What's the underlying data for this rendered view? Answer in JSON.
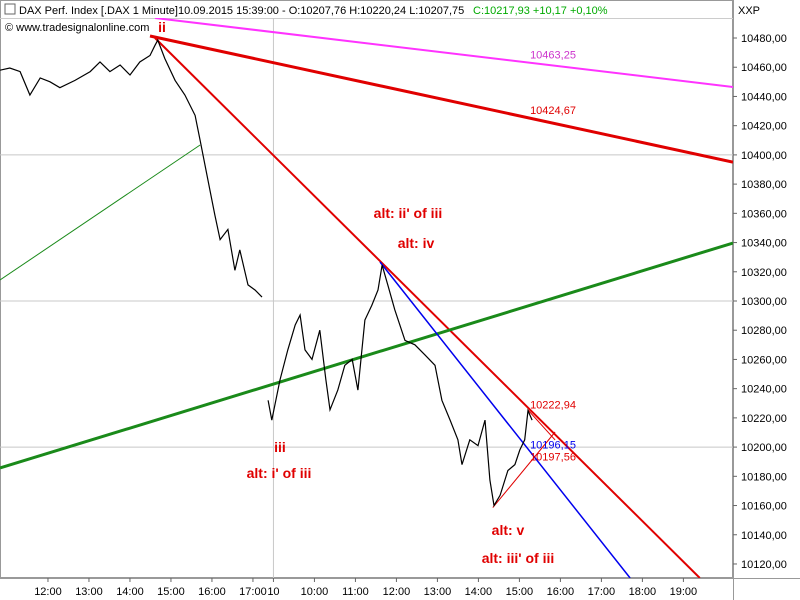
{
  "chart_data": {
    "type": "line",
    "title": "DAX Perf. Index [.DAX  1 Minute]",
    "subtitle": "10.09.2015 15:39:00 - O:10207,76 H:10220,24 L:10207,75",
    "change": "C:10217,93 +10,17 +0,10%",
    "copyright": "© www.tradesignalonline.com",
    "y_axis_label": "XXP",
    "color": "#000000",
    "x": [
      10.83,
      11.07,
      11.32,
      11.56,
      11.81,
      12.05,
      12.29,
      12.66,
      13.03,
      13.27,
      13.51,
      13.76,
      14.0,
      14.24,
      14.49,
      14.61,
      14.68,
      14.85,
      15.1,
      15.34,
      15.59,
      15.71,
      15.83,
      15.95,
      16.07,
      16.2,
      16.39,
      16.56,
      16.68,
      16.88,
      17.05,
      17.22,
      17.3,
      17.37,
      17.46,
      17.66,
      17.85,
      18.03,
      18.15,
      18.27,
      18.44,
      18.63,
      18.78,
      18.88,
      19.07,
      19.24,
      19.42,
      19.56,
      19.73,
      19.9,
      20.05,
      20.15,
      20.29,
      20.46,
      20.71,
      20.95,
      21.2,
      21.44,
      21.61,
      21.81,
      22.0,
      22.1,
      22.29,
      22.49,
      22.66,
      22.78,
      22.88,
      23.03,
      23.22,
      23.39,
      23.51,
      23.63,
      23.71,
      23.81
    ],
    "values": [
      10458,
      10459.5,
      10457,
      10441,
      10452.6,
      10450,
      10446,
      10451,
      10457,
      10463.6,
      10457,
      10461.5,
      10454.7,
      10463.6,
      10468,
      10475,
      10478.6,
      10466,
      10451,
      10441,
      10427,
      10410,
      10393,
      10376,
      10359,
      10342,
      10349,
      10321,
      10335,
      10311,
      10307.5,
      10302.7,
      null,
      10232,
      10218.5,
      10246,
      10266.5,
      10283.6,
      10290.4,
      10266.5,
      10260,
      10280,
      10246,
      10225.5,
      10239,
      10256,
      10260,
      10239,
      10287,
      10297,
      10307.5,
      10324.6,
      10311,
      10294,
      10273,
      10270,
      10263,
      10256,
      10232,
      10218.5,
      10205,
      10188,
      10205,
      10201,
      10218.5,
      10177.5,
      10160,
      10167,
      10184,
      10188,
      10198,
      10205,
      10225,
      10218.5
    ],
    "xlim": [
      10.83,
      28.71
    ],
    "ylim": [
      10110.4,
      10493.7
    ],
    "xticks": [
      {
        "value": 12,
        "label": "12:00"
      },
      {
        "value": 13,
        "label": "13:00"
      },
      {
        "value": 14,
        "label": "14:00"
      },
      {
        "value": 15,
        "label": "15:00"
      },
      {
        "value": 16,
        "label": "16:00"
      },
      {
        "value": 17,
        "label": "17:00"
      },
      {
        "value": 17.5,
        "label": "10"
      },
      {
        "value": 18.5,
        "label": "10:00"
      },
      {
        "value": 19.5,
        "label": "11:00"
      },
      {
        "value": 20.5,
        "label": "12:00"
      },
      {
        "value": 21.5,
        "label": "13:00"
      },
      {
        "value": 22.5,
        "label": "14:00"
      },
      {
        "value": 23.5,
        "label": "15:00"
      },
      {
        "value": 24.5,
        "label": "16:00"
      },
      {
        "value": 25.5,
        "label": "17:00"
      },
      {
        "value": 26.5,
        "label": "18:00"
      },
      {
        "value": 27.5,
        "label": "19:00"
      }
    ],
    "yticks": [
      {
        "value": 10120,
        "label": "10120,00"
      },
      {
        "value": 10140,
        "label": "10140,00"
      },
      {
        "value": 10160,
        "label": "10160,00"
      },
      {
        "value": 10180,
        "label": "10180,00"
      },
      {
        "value": 10200,
        "label": "10200,00"
      },
      {
        "value": 10220,
        "label": "10220,00"
      },
      {
        "value": 10240,
        "label": "10240,00"
      },
      {
        "value": 10260,
        "label": "10260,00"
      },
      {
        "value": 10280,
        "label": "10280,00"
      },
      {
        "value": 10300,
        "label": "10300,00"
      },
      {
        "value": 10320,
        "label": "10320,00"
      },
      {
        "value": 10340,
        "label": "10340,00"
      },
      {
        "value": 10360,
        "label": "10360,00"
      },
      {
        "value": 10380,
        "label": "10380,00"
      },
      {
        "value": 10400,
        "label": "10400,00"
      },
      {
        "value": 10420,
        "label": "10420,00"
      },
      {
        "value": 10440,
        "label": "10440,00"
      },
      {
        "value": 10460,
        "label": "10460,00"
      },
      {
        "value": 10480,
        "label": "10480,00"
      }
    ],
    "ygrid": [
      10200,
      10300,
      10400
    ],
    "xgrid": [
      17.5
    ],
    "lines": [
      {
        "color": "#ff33ff",
        "width": 2,
        "x": [
          14.61,
          28.71
        ],
        "values": [
          10493.7,
          10446.5
        ]
      },
      {
        "color": "#e00000",
        "width": 3,
        "x": [
          14.49,
          28.71
        ],
        "values": [
          10481.4,
          10395.1
        ]
      },
      {
        "color": "#e00000",
        "width": 2,
        "x": [
          14.61,
          27.9
        ],
        "values": [
          10480,
          10110.4
        ]
      },
      {
        "color": "#1a8a1a",
        "width": 3,
        "x": [
          10.83,
          28.71
        ],
        "values": [
          10185.7,
          10339.7
        ]
      },
      {
        "color": "#1a8a1a",
        "width": 1,
        "x": [
          10.83,
          15.71
        ],
        "values": [
          10314.4,
          10406.8
        ]
      },
      {
        "color": "#0000ee",
        "width": 1.5,
        "x": [
          20.1,
          26.2
        ],
        "values": [
          10326.7,
          10110.4
        ]
      },
      {
        "color": "#e00000",
        "width": 1,
        "x": [
          22.85,
          24.37
        ],
        "values": [
          10158.6,
          10210.3
        ]
      },
      {
        "color": "#e00000",
        "width": 1,
        "x": [
          23.71,
          24.37
        ],
        "values": [
          10225.4,
          10204.9
        ]
      }
    ],
    "price_labels": [
      {
        "value": 10463.25,
        "label": "10463,25",
        "x": 23.76,
        "color": "#cc33cc"
      },
      {
        "value": 10424.67,
        "label": "10424,67",
        "x": 23.76,
        "color": "#e00000"
      },
      {
        "value": 10222.94,
        "label": "10222,94",
        "x": 23.76,
        "color": "#e00000"
      },
      {
        "value": 10196.15,
        "label": "10196,15",
        "x": 23.76,
        "color": "#0000ee"
      },
      {
        "value": 10197.56,
        "label": "10197,56",
        "x": 23.76,
        "color": "#e00000"
      }
    ],
    "annotations": [
      "ii",
      "alt: ii' of iii",
      "alt: iv",
      "iii",
      "alt: i' of iii",
      "alt: v",
      "alt: iii' of iii"
    ],
    "annotation_color": "#e00000",
    "change_color": "#00aa00"
  }
}
